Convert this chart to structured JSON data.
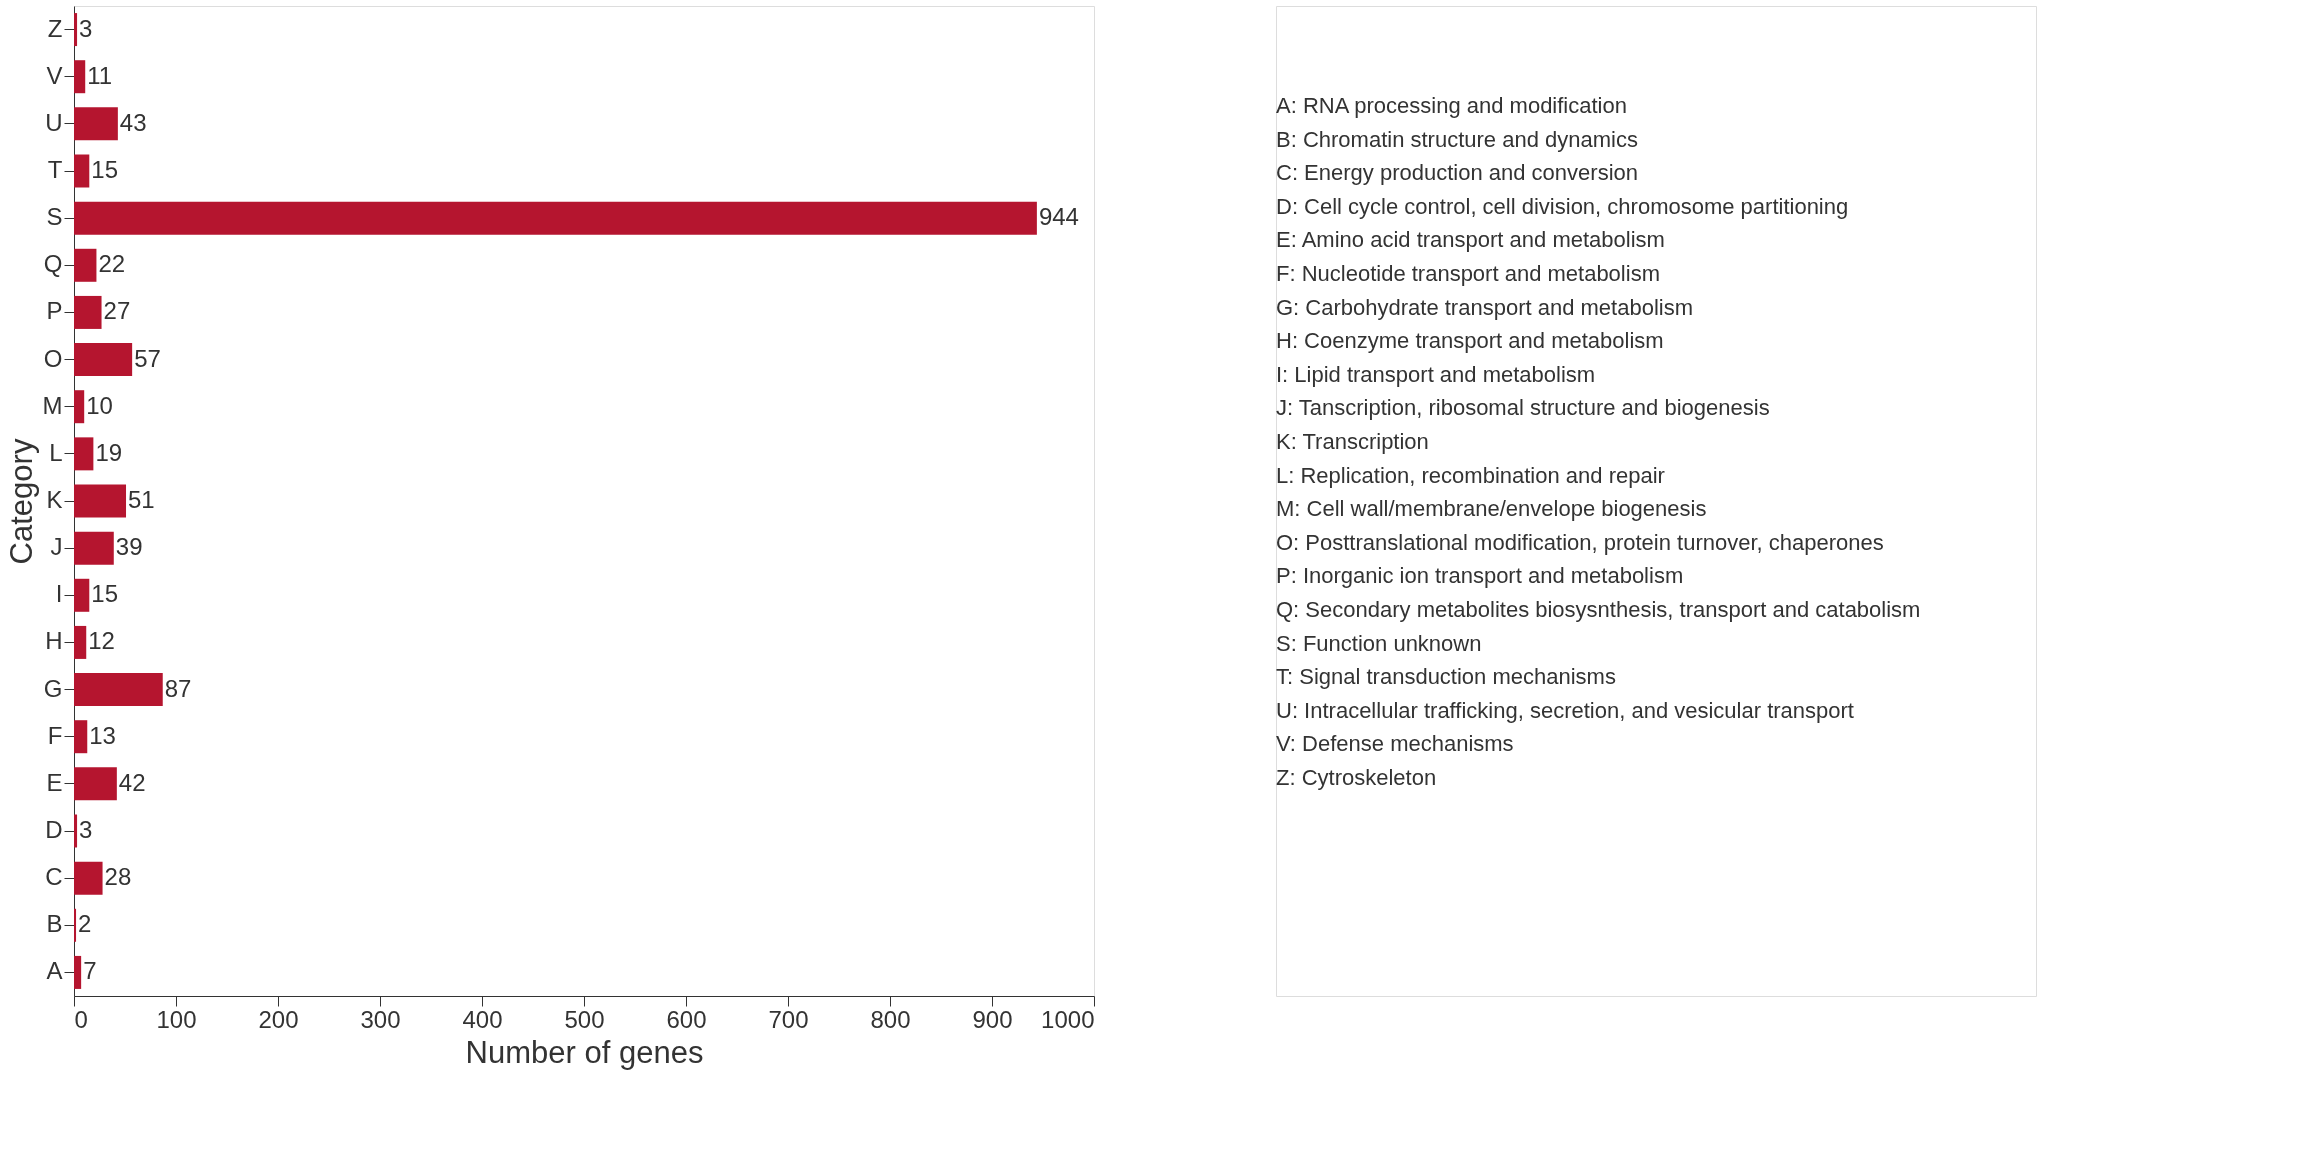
{
  "chart_data": {
    "type": "bar",
    "orientation": "horizontal",
    "xlabel": "Number of genes",
    "ylabel": "Category",
    "categories": [
      "Z",
      "V",
      "U",
      "T",
      "S",
      "Q",
      "P",
      "O",
      "M",
      "L",
      "K",
      "J",
      "I",
      "H",
      "G",
      "F",
      "E",
      "D",
      "C",
      "B",
      "A"
    ],
    "values": [
      3,
      11,
      43,
      15,
      944,
      22,
      27,
      57,
      10,
      19,
      51,
      39,
      15,
      12,
      87,
      13,
      42,
      3,
      28,
      2,
      7
    ],
    "color": "#b5152f",
    "data_labels": true,
    "grid": false,
    "xlim": [
      0,
      1000
    ],
    "xticks": [
      0,
      100,
      200,
      300,
      400,
      500,
      600,
      700,
      800,
      900,
      1000
    ],
    "annotations": [
      "A: RNA processing and modification",
      "B: Chromatin structure and dynamics",
      "C: Energy production and conversion",
      "D: Cell cycle control, cell division, chromosome partitioning",
      "E: Amino acid transport and metabolism",
      "F: Nucleotide transport and metabolism",
      "G: Carbohydrate transport and metabolism",
      "H: Coenzyme transport and metabolism",
      "I: Lipid transport and metabolism",
      "J: Tanscription, ribosomal structure and biogenesis",
      "K: Transcription",
      "L: Replication, recombination and repair",
      "M: Cell wall/membrane/envelope biogenesis",
      "O: Posttranslational modification, protein turnover, chaperones",
      "P: Inorganic ion transport and metabolism",
      "Q: Secondary metabolites biosysnthesis, transport and catabolism",
      "S: Function unknown",
      "T: Signal transduction mechanisms",
      "U: Intracellular trafficking, secretion, and vesicular transport",
      "V: Defense mechanisms",
      "Z: Cytroskeleton"
    ]
  }
}
